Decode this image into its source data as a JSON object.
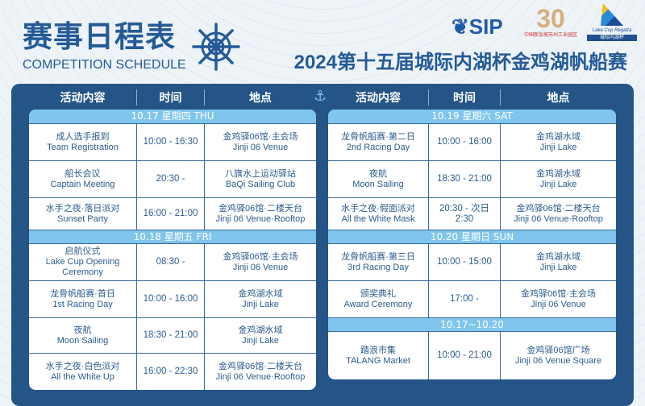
{
  "header": {
    "title_cn": "赛事日程表",
    "title_en": "COMPETITION SCHEDULE",
    "subtitle": "2024第十五届城际内湖杯金鸡湖帆船赛"
  },
  "logos": {
    "sip": "SIP",
    "thirty": "30",
    "thirty_caption": "中国新加坡苏州工业园区",
    "lake_cup": "Lake Cup Regatta",
    "lake_cup_cn": "城际内湖杯"
  },
  "columns": [
    "活动内容",
    "时间",
    "地点"
  ],
  "colors": {
    "navy": "#245586",
    "date_band": "#7fc6ec",
    "text": "#2d5b8e"
  },
  "left": [
    {
      "date": "10.17 星期四 THU",
      "rows": [
        {
          "cn": "成人选手报到",
          "en": "Team Registration",
          "time": "10:00 - 16:30",
          "venue_cn": "金鸡驿06馆·主会场",
          "venue_en": "Jinji 06 Venue"
        },
        {
          "cn": "船长会议",
          "en": "Captain Meeting",
          "time": "20:30 -",
          "venue_cn": "八旗水上运动驿站",
          "venue_en": "BaQi Sailing Club"
        },
        {
          "cn": "水手之夜·落日派对",
          "en": "Sunset Party",
          "time": "16:00 - 21:00",
          "venue_cn": "金鸡驿06馆·二楼天台",
          "venue_en": "Jinji 06 Venue·Rooftop"
        }
      ]
    },
    {
      "date": "10.18 星期五 FRI",
      "rows": [
        {
          "cn": "启航仪式",
          "en": "Lake Cup Opening Ceremony",
          "time": "08:30 -",
          "venue_cn": "金鸡驿06馆·主会场",
          "venue_en": "Jinji 06 Venue"
        },
        {
          "cn": "龙骨帆船赛·首日",
          "en": "1st Racing Day",
          "time": "10:00 - 16:00",
          "venue_cn": "金鸡湖水域",
          "venue_en": "Jinji Lake"
        },
        {
          "cn": "夜航",
          "en": "Moon Sailing",
          "time": "18:30 - 21:00",
          "venue_cn": "金鸡湖水域",
          "venue_en": "Jinji Lake"
        },
        {
          "cn": "水手之夜·白色派对",
          "en": "All the White Up",
          "time": "16:00 - 22:30",
          "venue_cn": "金鸡驿06馆·二楼天台",
          "venue_en": "Jinji 06 Venue·Rooftop"
        }
      ]
    }
  ],
  "right": [
    {
      "date": "10.19 星期六 SAT",
      "rows": [
        {
          "cn": "龙骨帆船赛·第二日",
          "en": "2nd Racing Day",
          "time": "10:00 - 16:00",
          "venue_cn": "金鸡湖水域",
          "venue_en": "Jinji Lake"
        },
        {
          "cn": "夜航",
          "en": "Moon Sailing",
          "time": "18:30 - 21:00",
          "venue_cn": "金鸡湖水域",
          "venue_en": "Jinji Lake"
        },
        {
          "cn": "水手之夜·假面派对",
          "en": "All the White Mask",
          "time": "20:30 - 次日2:30",
          "venue_cn": "金鸡驿06馆·二楼天台",
          "venue_en": "Jinji 06 Venue·Rooftop"
        }
      ]
    },
    {
      "date": "10.20 星期日 SUN",
      "rows": [
        {
          "cn": "龙骨帆船赛·第三日",
          "en": "3rd Racing Day",
          "time": "10:00 - 15:00",
          "venue_cn": "金鸡湖水域",
          "venue_en": "Jinji Lake"
        },
        {
          "cn": "颁奖典礼",
          "en": "Award Ceremony",
          "time": "17:00 -",
          "venue_cn": "金鸡驿06馆·主会场",
          "venue_en": "Jinji 06 Venue"
        }
      ]
    },
    {
      "date": "10.17~10.20",
      "rows": [
        {
          "cn": "踏浪市集",
          "en": "TALANG Market",
          "time": "10:00 - 21:00",
          "venue_cn": "金鸡驿06馆广场",
          "venue_en": "Jinji 06 Venue Square"
        }
      ]
    }
  ]
}
